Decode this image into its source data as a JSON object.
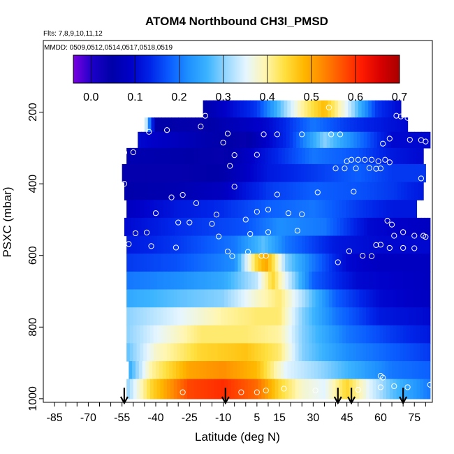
{
  "chart_data": {
    "type": "heatmap",
    "title": "ATOM4 Northbound CH3I_PMSD",
    "flights_text": "Flts: 7,8,9,10,11,12",
    "dates_text": "MMDD: 0509,0512,0514,0517,0518,0519",
    "xlabel": "Latitude (deg N)",
    "ylabel": "PSXC (mbar)",
    "xlim": [
      -90,
      83
    ],
    "ylim": [
      1010,
      0
    ],
    "x_ticks": [
      -85,
      -70,
      -55,
      -40,
      -25,
      -10,
      5,
      15,
      30,
      45,
      60,
      75
    ],
    "x_tick_labels": [
      "-85",
      "-70",
      "-55",
      "-40",
      "-25",
      "-10",
      "5",
      "15",
      "30",
      "45",
      "60",
      "75"
    ],
    "y_ticks": [
      200,
      400,
      600,
      800,
      1000
    ],
    "y_tick_labels": [
      "200",
      "400",
      "600",
      "800",
      "1000"
    ],
    "colorbar": {
      "min": -0.04,
      "max": 0.7,
      "ticks": [
        0.0,
        0.1,
        0.2,
        0.3,
        0.4,
        0.5,
        0.6,
        0.7
      ],
      "tick_labels": [
        "0.0",
        "0.1",
        "0.2",
        "0.3",
        "0.4",
        "0.5",
        "0.6",
        "0.7"
      ],
      "colors": [
        "#7a00e0",
        "#1b00c8",
        "#0000a8",
        "#0000c8",
        "#0024e8",
        "#0a5cff",
        "#1e90ff",
        "#3cb4ff",
        "#9ad8ff",
        "#e6f6ff",
        "#fff6b0",
        "#ffe040",
        "#ffb800",
        "#ff8800",
        "#ff5200",
        "#ff1c00",
        "#d80000",
        "#a80000"
      ]
    },
    "layers": [
      {
        "p_top": 167,
        "p_bot": 215,
        "lat_min": -19,
        "lat_max": 69,
        "profile": [
          [
            -19,
            0.05
          ],
          [
            5,
            0.15
          ],
          [
            25,
            0.4
          ],
          [
            35,
            0.48
          ],
          [
            45,
            0.35
          ],
          [
            58,
            0.15
          ],
          [
            69,
            0.1
          ]
        ]
      },
      {
        "p_top": 215,
        "p_bot": 255,
        "lat_min": -45,
        "lat_max": 72,
        "profile": [
          [
            -45,
            0.4
          ],
          [
            -43,
            0.22
          ],
          [
            -40,
            0.05
          ],
          [
            -20,
            0.04
          ],
          [
            10,
            0.1
          ],
          [
            30,
            0.2
          ],
          [
            45,
            0.15
          ],
          [
            60,
            0.12
          ],
          [
            72,
            0.1
          ]
        ]
      },
      {
        "p_top": 255,
        "p_bot": 300,
        "lat_min": -48,
        "lat_max": 82,
        "profile": [
          [
            -48,
            0.1
          ],
          [
            -20,
            0.06
          ],
          [
            0,
            0.04
          ],
          [
            20,
            0.15
          ],
          [
            35,
            0.3
          ],
          [
            50,
            0.2
          ],
          [
            65,
            0.1
          ],
          [
            82,
            0.1
          ]
        ]
      },
      {
        "p_top": 300,
        "p_bot": 345,
        "lat_min": -53,
        "lat_max": 79,
        "profile": [
          [
            -53,
            0.06
          ],
          [
            -30,
            0.05
          ],
          [
            -10,
            0.04
          ],
          [
            10,
            0.12
          ],
          [
            30,
            0.2
          ],
          [
            50,
            0.17
          ],
          [
            65,
            0.12
          ],
          [
            79,
            0.1
          ]
        ]
      },
      {
        "p_top": 345,
        "p_bot": 395,
        "lat_min": -55,
        "lat_max": 80,
        "profile": [
          [
            -55,
            0.04
          ],
          [
            -30,
            0.04
          ],
          [
            -10,
            0.05
          ],
          [
            10,
            0.12
          ],
          [
            30,
            0.15
          ],
          [
            50,
            0.18
          ],
          [
            65,
            0.15
          ],
          [
            80,
            0.15
          ]
        ]
      },
      {
        "p_top": 395,
        "p_bot": 445,
        "lat_min": -54,
        "lat_max": 79,
        "profile": [
          [
            -54,
            0.05
          ],
          [
            -30,
            0.06
          ],
          [
            -10,
            0.08
          ],
          [
            10,
            0.15
          ],
          [
            30,
            0.18
          ],
          [
            50,
            0.17
          ],
          [
            65,
            0.15
          ],
          [
            79,
            0.12
          ]
        ]
      },
      {
        "p_top": 445,
        "p_bot": 495,
        "lat_min": -53,
        "lat_max": 76,
        "profile": [
          [
            -53,
            0.08
          ],
          [
            -30,
            0.12
          ],
          [
            -10,
            0.14
          ],
          [
            10,
            0.18
          ],
          [
            30,
            0.2
          ],
          [
            50,
            0.15
          ],
          [
            65,
            0.12
          ],
          [
            76,
            0.12
          ]
        ]
      },
      {
        "p_top": 495,
        "p_bot": 545,
        "lat_min": -54,
        "lat_max": 82,
        "profile": [
          [
            -54,
            0.1
          ],
          [
            -30,
            0.14
          ],
          [
            0,
            0.17
          ],
          [
            15,
            0.22
          ],
          [
            35,
            0.2
          ],
          [
            55,
            0.1
          ],
          [
            82,
            0.08
          ]
        ]
      },
      {
        "p_top": 545,
        "p_bot": 595,
        "lat_min": -53,
        "lat_max": 82,
        "profile": [
          [
            -53,
            0.12
          ],
          [
            -30,
            0.15
          ],
          [
            -5,
            0.2
          ],
          [
            8,
            0.28
          ],
          [
            18,
            0.2
          ],
          [
            40,
            0.12
          ],
          [
            60,
            0.1
          ],
          [
            82,
            0.1
          ]
        ]
      },
      {
        "p_top": 595,
        "p_bot": 645,
        "lat_min": -53,
        "lat_max": 82,
        "profile": [
          [
            -53,
            0.15
          ],
          [
            -30,
            0.17
          ],
          [
            -5,
            0.22
          ],
          [
            5,
            0.45
          ],
          [
            9,
            0.5
          ],
          [
            13,
            0.42
          ],
          [
            18,
            0.3
          ],
          [
            30,
            0.2
          ],
          [
            45,
            0.1
          ],
          [
            60,
            0.08
          ],
          [
            82,
            0.08
          ]
        ]
      },
      {
        "p_top": 645,
        "p_bot": 695,
        "lat_min": -53,
        "lat_max": 82,
        "profile": [
          [
            -53,
            0.2
          ],
          [
            -30,
            0.22
          ],
          [
            -10,
            0.25
          ],
          [
            5,
            0.33
          ],
          [
            12,
            0.45
          ],
          [
            18,
            0.35
          ],
          [
            30,
            0.18
          ],
          [
            50,
            0.1
          ],
          [
            82,
            0.08
          ]
        ]
      },
      {
        "p_top": 695,
        "p_bot": 745,
        "lat_min": -53,
        "lat_max": 82,
        "profile": [
          [
            -53,
            0.25
          ],
          [
            -30,
            0.28
          ],
          [
            -10,
            0.3
          ],
          [
            5,
            0.38
          ],
          [
            15,
            0.42
          ],
          [
            22,
            0.35
          ],
          [
            40,
            0.18
          ],
          [
            60,
            0.1
          ],
          [
            82,
            0.08
          ]
        ]
      },
      {
        "p_top": 745,
        "p_bot": 795,
        "lat_min": -53,
        "lat_max": 82,
        "profile": [
          [
            -53,
            0.3
          ],
          [
            -30,
            0.35
          ],
          [
            -10,
            0.4
          ],
          [
            5,
            0.42
          ],
          [
            15,
            0.42
          ],
          [
            25,
            0.3
          ],
          [
            40,
            0.2
          ],
          [
            60,
            0.12
          ],
          [
            82,
            0.1
          ]
        ]
      },
      {
        "p_top": 795,
        "p_bot": 845,
        "lat_min": -53,
        "lat_max": 82,
        "profile": [
          [
            -53,
            0.3
          ],
          [
            -40,
            0.35
          ],
          [
            -20,
            0.42
          ],
          [
            0,
            0.42
          ],
          [
            15,
            0.4
          ],
          [
            25,
            0.3
          ],
          [
            45,
            0.2
          ],
          [
            65,
            0.15
          ],
          [
            82,
            0.12
          ]
        ]
      },
      {
        "p_top": 845,
        "p_bot": 895,
        "lat_min": -53,
        "lat_max": 82,
        "profile": [
          [
            -53,
            0.28
          ],
          [
            -40,
            0.38
          ],
          [
            -20,
            0.45
          ],
          [
            0,
            0.47
          ],
          [
            15,
            0.42
          ],
          [
            25,
            0.3
          ],
          [
            45,
            0.22
          ],
          [
            65,
            0.18
          ],
          [
            82,
            0.15
          ]
        ]
      },
      {
        "p_top": 895,
        "p_bot": 945,
        "lat_min": -52,
        "lat_max": 82,
        "profile": [
          [
            -52,
            0.25
          ],
          [
            -42,
            0.4
          ],
          [
            -25,
            0.5
          ],
          [
            -10,
            0.52
          ],
          [
            5,
            0.48
          ],
          [
            18,
            0.35
          ],
          [
            35,
            0.3
          ],
          [
            50,
            0.25
          ],
          [
            65,
            0.2
          ],
          [
            82,
            0.18
          ]
        ]
      },
      {
        "p_top": 945,
        "p_bot": 1000,
        "lat_min": -53,
        "lat_max": 82,
        "profile": [
          [
            -53,
            0.3
          ],
          [
            -42,
            0.45
          ],
          [
            -25,
            0.58
          ],
          [
            -10,
            0.6
          ],
          [
            5,
            0.55
          ],
          [
            15,
            0.45
          ],
          [
            25,
            0.38
          ],
          [
            35,
            0.35
          ],
          [
            45,
            0.45
          ],
          [
            55,
            0.35
          ],
          [
            65,
            0.28
          ],
          [
            82,
            0.2
          ]
        ]
      }
    ],
    "sample_points": [
      [
        -18,
        210
      ],
      [
        37,
        187
      ],
      [
        67,
        210
      ],
      [
        69,
        212
      ],
      [
        72,
        216
      ],
      [
        -43,
        255
      ],
      [
        -35,
        250
      ],
      [
        -20,
        240
      ],
      [
        8,
        262
      ],
      [
        14,
        262
      ],
      [
        25,
        262
      ],
      [
        38,
        262
      ],
      [
        42,
        262
      ],
      [
        -8,
        260
      ],
      [
        61,
        288
      ],
      [
        64,
        274
      ],
      [
        73,
        277
      ],
      [
        78,
        278
      ],
      [
        80,
        282
      ],
      [
        -10,
        285
      ],
      [
        -5,
        320
      ],
      [
        5,
        319
      ],
      [
        45,
        337
      ],
      [
        47,
        333
      ],
      [
        50,
        333
      ],
      [
        53,
        333
      ],
      [
        56,
        333
      ],
      [
        59,
        337
      ],
      [
        62,
        333
      ],
      [
        64,
        340
      ],
      [
        -7,
        350
      ],
      [
        40,
        357
      ],
      [
        44,
        357
      ],
      [
        49,
        357
      ],
      [
        55,
        356
      ],
      [
        58,
        358
      ],
      [
        60,
        357
      ],
      [
        -50,
        312
      ],
      [
        -54,
        313
      ],
      [
        -54,
        400
      ],
      [
        -33,
        438
      ],
      [
        -28,
        431
      ],
      [
        -5,
        408
      ],
      [
        14,
        430
      ],
      [
        32,
        424
      ],
      [
        48,
        422
      ],
      [
        78,
        385
      ],
      [
        -40,
        482
      ],
      [
        -22,
        454
      ],
      [
        -13,
        486
      ],
      [
        5,
        478
      ],
      [
        10,
        472
      ],
      [
        19,
        482
      ],
      [
        25,
        485
      ],
      [
        -30,
        508
      ],
      [
        -25,
        508
      ],
      [
        -15,
        512
      ],
      [
        0,
        500
      ],
      [
        -49,
        538
      ],
      [
        -44,
        536
      ],
      [
        -52,
        568
      ],
      [
        -42,
        574
      ],
      [
        -31,
        578
      ],
      [
        -12,
        547
      ],
      [
        2,
        540
      ],
      [
        10,
        535
      ],
      [
        23,
        531
      ],
      [
        63,
        503
      ],
      [
        65,
        514
      ],
      [
        66,
        545
      ],
      [
        70,
        535
      ],
      [
        75,
        545
      ],
      [
        79,
        545
      ],
      [
        58,
        571
      ],
      [
        60,
        570
      ],
      [
        64,
        579
      ],
      [
        70,
        579
      ],
      [
        75,
        580
      ],
      [
        80,
        548
      ],
      [
        -8,
        589
      ],
      [
        -6,
        602
      ],
      [
        7,
        601
      ],
      [
        9,
        601
      ],
      [
        46,
        588
      ],
      [
        52,
        601
      ],
      [
        56,
        602
      ],
      [
        41,
        619
      ],
      [
        1,
        590
      ],
      [
        60,
        936
      ],
      [
        66,
        965
      ],
      [
        61,
        941
      ],
      [
        82,
        961
      ],
      [
        72,
        968
      ],
      [
        60,
        968
      ],
      [
        -28,
        982
      ],
      [
        -2,
        982
      ],
      [
        5,
        982
      ],
      [
        9,
        977
      ],
      [
        17,
        972
      ],
      [
        31,
        977
      ],
      [
        50,
        975
      ]
    ],
    "flight_arrows": [
      -54,
      -9,
      41,
      47,
      70
    ]
  }
}
